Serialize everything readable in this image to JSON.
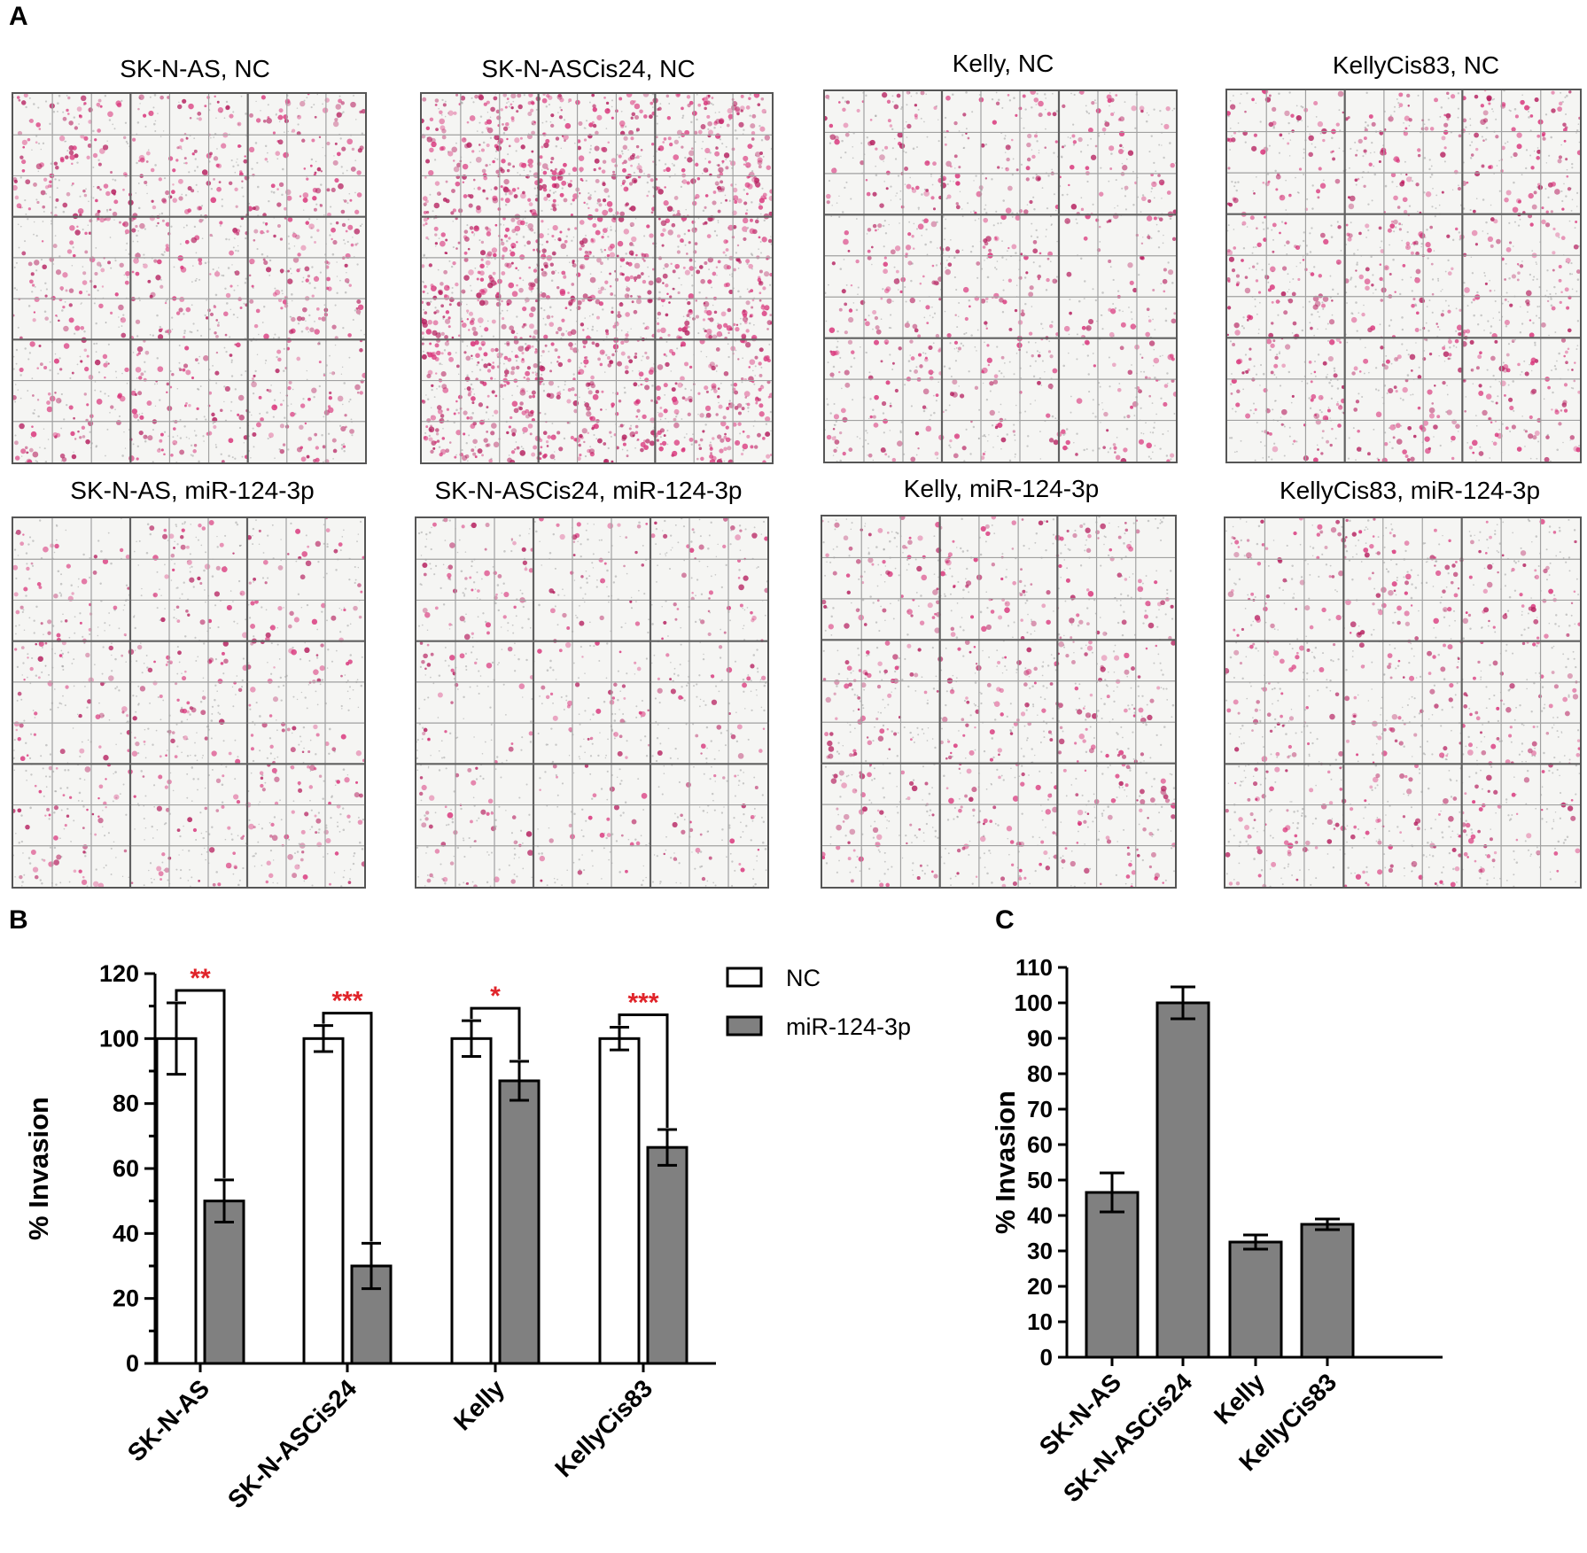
{
  "panels": {
    "a": "A",
    "b": "B",
    "c": "C"
  },
  "micrographs": [
    {
      "title": "SK-N-AS, NC",
      "density": 0.45
    },
    {
      "title": "SK-N-ASCis24, NC",
      "density": 1.0
    },
    {
      "title": "Kelly, NC",
      "density": 0.3
    },
    {
      "title": "KellyCis83, NC",
      "density": 0.38
    },
    {
      "title": "SK-N-AS, miR-124-3p",
      "density": 0.22
    },
    {
      "title": "SK-N-ASCis24, miR-124-3p",
      "density": 0.15
    },
    {
      "title": "Kelly, miR-124-3p",
      "density": 0.27
    },
    {
      "title": "KellyCis83, miR-124-3p",
      "density": 0.25
    }
  ],
  "colors": {
    "stain": "#d9337a",
    "bar_dark": "#808080",
    "bar_light": "#ffffff",
    "significance": "#e0242a",
    "grid_line": "#606060"
  },
  "chart_data": [
    {
      "type": "bar",
      "panel": "B",
      "categories": [
        "SK-N-AS",
        "SK-N-ASCis24",
        "Kelly",
        "KellyCis83"
      ],
      "series": [
        {
          "name": "NC",
          "values": [
            100,
            100,
            100,
            100
          ],
          "errors": [
            11,
            4,
            5.5,
            3.5
          ],
          "color": "#ffffff"
        },
        {
          "name": "miR-124-3p",
          "values": [
            50,
            30,
            87,
            66.5
          ],
          "errors": [
            6.5,
            7,
            6,
            5.5
          ],
          "color": "#808080"
        }
      ],
      "significance": [
        "**",
        "***",
        "*",
        "***"
      ],
      "ylabel": "% Invasion",
      "ylim": [
        0,
        120
      ],
      "yticks": [
        0,
        20,
        40,
        60,
        80,
        100,
        120
      ],
      "legend": "top-right"
    },
    {
      "type": "bar",
      "panel": "C",
      "categories": [
        "SK-N-AS",
        "SK-N-ASCis24",
        "Kelly",
        "KellyCis83"
      ],
      "values": [
        46.5,
        100,
        32.5,
        37.5
      ],
      "errors": [
        5.5,
        4.5,
        2,
        1.5
      ],
      "ylabel": "% Invasion",
      "ylim": [
        0,
        110
      ],
      "yticks": [
        0,
        10,
        20,
        30,
        40,
        50,
        60,
        70,
        80,
        90,
        100,
        110
      ]
    }
  ]
}
